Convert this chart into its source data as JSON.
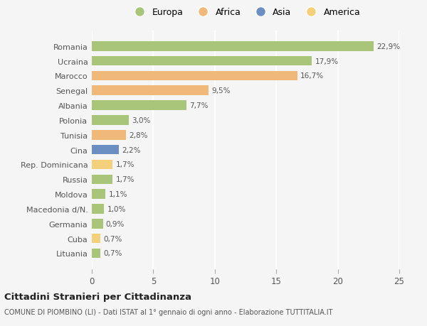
{
  "countries": [
    "Romania",
    "Ucraina",
    "Marocco",
    "Senegal",
    "Albania",
    "Polonia",
    "Tunisia",
    "Cina",
    "Rep. Dominicana",
    "Russia",
    "Moldova",
    "Macedonia d/N.",
    "Germania",
    "Cuba",
    "Lituania"
  ],
  "values": [
    22.9,
    17.9,
    16.7,
    9.5,
    7.7,
    3.0,
    2.8,
    2.2,
    1.7,
    1.7,
    1.1,
    1.0,
    0.9,
    0.7,
    0.7
  ],
  "labels": [
    "22,9%",
    "17,9%",
    "16,7%",
    "9,5%",
    "7,7%",
    "3,0%",
    "2,8%",
    "2,2%",
    "1,7%",
    "1,7%",
    "1,1%",
    "1,0%",
    "0,9%",
    "0,7%",
    "0,7%"
  ],
  "colors": [
    "#a8c57a",
    "#a8c57a",
    "#f0b97a",
    "#f0b97a",
    "#a8c57a",
    "#a8c57a",
    "#f0b97a",
    "#6b8fc2",
    "#f5d07a",
    "#a8c57a",
    "#a8c57a",
    "#a8c57a",
    "#a8c57a",
    "#f5d07a",
    "#a8c57a"
  ],
  "legend_labels": [
    "Europa",
    "Africa",
    "Asia",
    "America"
  ],
  "legend_colors": [
    "#a8c57a",
    "#f0b97a",
    "#6b8fc2",
    "#f5d07a"
  ],
  "xlim": [
    0,
    25
  ],
  "xticks": [
    0,
    5,
    10,
    15,
    20,
    25
  ],
  "title": "Cittadini Stranieri per Cittadinanza",
  "subtitle": "COMUNE DI PIOMBINO (LI) - Dati ISTAT al 1° gennaio di ogni anno - Elaborazione TUTTITALIA.IT",
  "bg_color": "#f5f5f5",
  "bar_height": 0.65,
  "grid_color": "#ffffff",
  "text_color": "#555555",
  "title_color": "#222222"
}
